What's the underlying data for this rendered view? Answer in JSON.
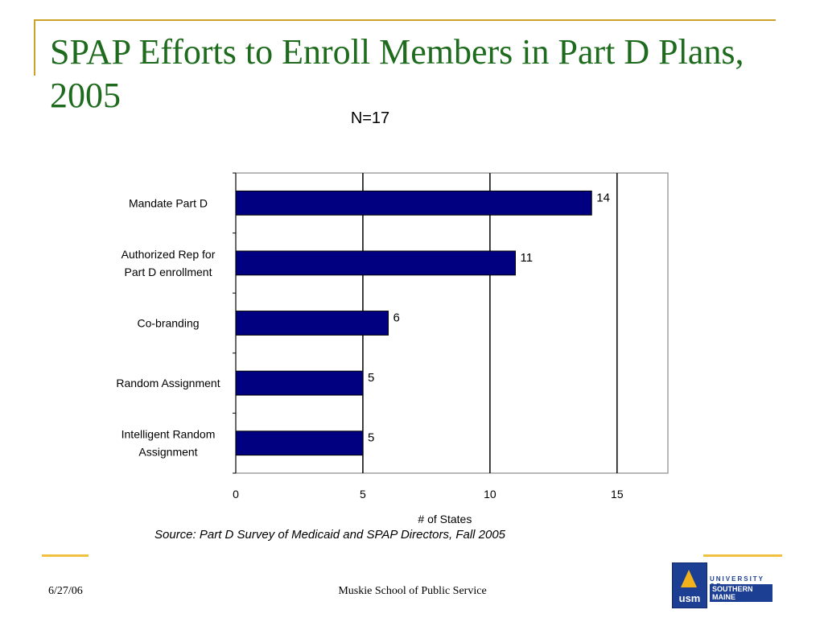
{
  "slide": {
    "title": "SPAP Efforts to Enroll Members in Part D Plans, 2005",
    "subtitle": "N=17",
    "source": "Source: Part D Survey of Medicaid and SPAP Directors, Fall 2005",
    "date": "6/27/06",
    "footer": "Muskie School of Public Service",
    "logo_text": "usm",
    "logo_line1": "UNIVERSITY OF",
    "logo_line2": "SOUTHERN MAINE"
  },
  "colors": {
    "bar": "#000080",
    "accent": "#c9a227",
    "title": "#1e6b1e"
  },
  "chart_data": {
    "type": "bar",
    "orientation": "horizontal",
    "categories": [
      [
        "Mandate Part D"
      ],
      [
        "Authorized Rep for",
        "Part D enrollment"
      ],
      [
        "Co-branding"
      ],
      [
        "Random Assignment"
      ],
      [
        "Intelligent Random",
        "Assignment"
      ]
    ],
    "values": [
      14,
      11,
      6,
      5,
      5
    ],
    "data_labels": [
      "14",
      "11",
      "6",
      "5",
      "5"
    ],
    "xlabel": "# of States",
    "ylabel": "",
    "xlim": [
      0,
      17
    ],
    "xticks": [
      0,
      5,
      10,
      15
    ],
    "grid": "vertical lines at 5, 10, 15",
    "legend": "none"
  }
}
